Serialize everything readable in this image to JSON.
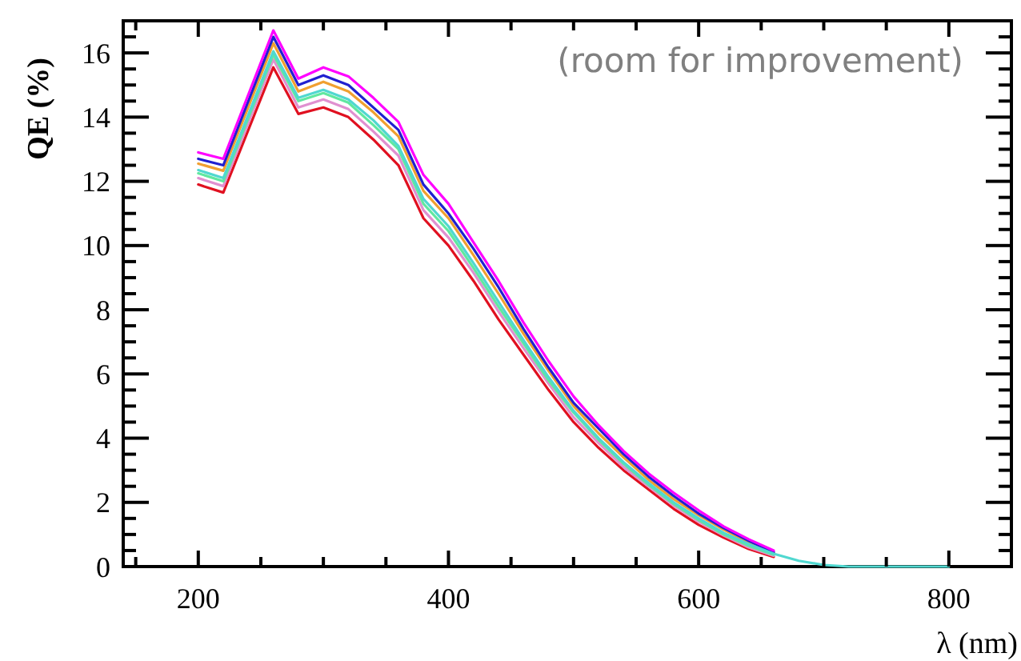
{
  "chart_data": {
    "type": "line",
    "xlabel": "λ (nm)",
    "ylabel": "QE (%)",
    "annotations": [
      "(room for improvement)"
    ],
    "x": [
      200,
      220,
      260,
      280,
      300,
      320,
      340,
      360,
      380,
      400,
      420,
      440,
      460,
      480,
      500,
      520,
      540,
      560,
      580,
      600,
      620,
      640,
      660,
      680,
      700,
      720,
      740,
      760,
      780,
      800
    ],
    "xlim": [
      140,
      850
    ],
    "ylim": [
      0,
      17
    ],
    "xticks": [
      {
        "value": 150,
        "label": null
      },
      200,
      {
        "value": 250,
        "label": null
      },
      {
        "value": 300,
        "label": null
      },
      {
        "value": 350,
        "label": null
      },
      400,
      {
        "value": 450,
        "label": null
      },
      {
        "value": 500,
        "label": null
      },
      {
        "value": 550,
        "label": null
      },
      600,
      {
        "value": 650,
        "label": null
      },
      {
        "value": 700,
        "label": null
      },
      {
        "value": 750,
        "label": null
      },
      800,
      {
        "value": 850,
        "label": null
      }
    ],
    "yticks": [
      0,
      {
        "value": 0.5,
        "label": null
      },
      {
        "value": 1,
        "label": null
      },
      {
        "value": 1.5,
        "label": null
      },
      2,
      {
        "value": 2.5,
        "label": null
      },
      {
        "value": 3,
        "label": null
      },
      {
        "value": 3.5,
        "label": null
      },
      4,
      {
        "value": 4.5,
        "label": null
      },
      {
        "value": 5,
        "label": null
      },
      {
        "value": 5.5,
        "label": null
      },
      6,
      {
        "value": 6.5,
        "label": null
      },
      {
        "value": 7,
        "label": null
      },
      {
        "value": 7.5,
        "label": null
      },
      8,
      {
        "value": 8.5,
        "label": null
      },
      {
        "value": 9,
        "label": null
      },
      {
        "value": 9.5,
        "label": null
      },
      10,
      {
        "value": 10.5,
        "label": null
      },
      {
        "value": 11,
        "label": null
      },
      {
        "value": 11.5,
        "label": null
      },
      12,
      {
        "value": 12.5,
        "label": null
      },
      {
        "value": 13,
        "label": null
      },
      {
        "value": 13.5,
        "label": null
      },
      14,
      {
        "value": 14.5,
        "label": null
      },
      {
        "value": 15,
        "label": null
      },
      {
        "value": 15.5,
        "label": null
      },
      16,
      {
        "value": 16.5,
        "label": null
      },
      {
        "value": 17,
        "label": null
      }
    ],
    "marker": "none",
    "line_style": "solid",
    "series": [
      {
        "color": "#e01020",
        "values": [
          11.9,
          11.65,
          15.55,
          14.1,
          14.3,
          14.0,
          13.3,
          12.5,
          10.85,
          10.0,
          8.9,
          7.7,
          6.6,
          5.5,
          4.5,
          3.7,
          3.0,
          2.4,
          1.8,
          1.3,
          0.9,
          0.55,
          0.3,
          null,
          null,
          null,
          null,
          null,
          null,
          null
        ]
      },
      {
        "color": "#e090d0",
        "values": [
          12.1,
          11.85,
          15.8,
          14.3,
          14.55,
          14.25,
          13.55,
          12.8,
          11.1,
          10.25,
          9.15,
          7.95,
          6.8,
          5.7,
          4.65,
          3.85,
          3.1,
          2.5,
          1.9,
          1.4,
          0.97,
          0.6,
          0.34,
          null,
          null,
          null,
          null,
          null,
          null,
          null
        ]
      },
      {
        "color": "#60e8a0",
        "values": [
          12.25,
          12.0,
          15.95,
          14.5,
          14.75,
          14.45,
          13.75,
          13.0,
          11.3,
          10.45,
          9.3,
          8.1,
          6.95,
          5.8,
          4.8,
          3.95,
          3.2,
          2.55,
          1.95,
          1.45,
          1.0,
          0.65,
          0.37,
          null,
          null,
          null,
          null,
          null,
          null,
          null
        ]
      },
      {
        "color": "#f0a030",
        "values": [
          12.55,
          12.33,
          16.3,
          14.8,
          15.1,
          14.8,
          14.15,
          13.4,
          11.7,
          10.85,
          9.7,
          8.5,
          7.25,
          6.1,
          5.0,
          4.15,
          3.4,
          2.7,
          2.1,
          1.6,
          1.15,
          0.75,
          0.43,
          null,
          null,
          null,
          null,
          null,
          null,
          null
        ]
      },
      {
        "color": "#2020d0",
        "values": [
          12.7,
          12.5,
          16.5,
          15.0,
          15.3,
          15.0,
          14.3,
          13.6,
          11.9,
          11.0,
          9.9,
          8.7,
          7.4,
          6.2,
          5.1,
          4.3,
          3.5,
          2.8,
          2.2,
          1.65,
          1.2,
          0.8,
          0.45,
          null,
          null,
          null,
          null,
          null,
          null,
          null
        ]
      },
      {
        "color": "#ff00ff",
        "values": [
          12.9,
          12.7,
          16.7,
          15.2,
          15.55,
          15.27,
          14.6,
          13.85,
          12.2,
          11.3,
          10.1,
          8.9,
          7.6,
          6.4,
          5.3,
          4.4,
          3.6,
          2.9,
          2.3,
          1.75,
          1.25,
          0.85,
          0.5,
          null,
          null,
          null,
          null,
          null,
          null,
          null
        ]
      },
      {
        "color": "#50d8d0",
        "values": [
          12.35,
          12.1,
          16.05,
          14.6,
          14.85,
          14.55,
          13.9,
          13.1,
          11.45,
          10.6,
          9.45,
          8.25,
          7.05,
          5.9,
          4.85,
          4.0,
          3.25,
          2.6,
          2.0,
          1.5,
          1.05,
          0.7,
          0.4,
          0.18,
          0.05,
          0,
          0,
          0,
          0,
          0
        ]
      }
    ]
  }
}
